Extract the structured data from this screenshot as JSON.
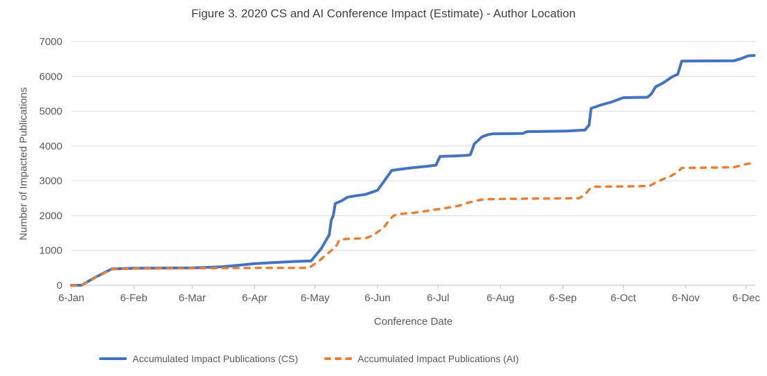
{
  "title": "Figure 3. 2020 CS and AI Conference Impact (Estimate) - Author Location",
  "chart_data": {
    "type": "line",
    "title": "Figure 3. 2020 CS and AI Conference Impact (Estimate) - Author Location",
    "xlabel": "Conference Date",
    "ylabel": "Number of Impacted Publications",
    "ylim": [
      0,
      7000
    ],
    "y_tick_step": 1000,
    "x_tick_labels": [
      "6-Jan",
      "6-Feb",
      "6-Mar",
      "6-Apr",
      "6-May",
      "6-Jun",
      "6-Jul",
      "6-Aug",
      "6-Sep",
      "6-Oct",
      "6-Nov",
      "6-Dec"
    ],
    "x_ticks_days": [
      0,
      31,
      60,
      91,
      121,
      152,
      182,
      213,
      244,
      274,
      305,
      335
    ],
    "x_unit": "days after 6-Jan-2020",
    "grid": "horizontal",
    "legend_position": "bottom",
    "colors": {
      "gridline": "#D9D9D9",
      "axis": "#BFBFBF",
      "tick_text": "#595959",
      "title_text": "#404040"
    },
    "series": [
      {
        "id": "cs",
        "name": "Accumulated Impact Publications (CS)",
        "color": "#4472C4",
        "style": "solid",
        "width": 4,
        "points": [
          [
            0,
            0
          ],
          [
            5,
            0
          ],
          [
            12,
            230
          ],
          [
            20,
            470
          ],
          [
            31,
            490
          ],
          [
            60,
            500
          ],
          [
            75,
            530
          ],
          [
            91,
            620
          ],
          [
            100,
            650
          ],
          [
            110,
            680
          ],
          [
            119,
            700
          ],
          [
            124,
            1050
          ],
          [
            128,
            1450
          ],
          [
            129,
            1870
          ],
          [
            130,
            2000
          ],
          [
            131,
            2350
          ],
          [
            134,
            2420
          ],
          [
            137,
            2530
          ],
          [
            141,
            2570
          ],
          [
            146,
            2610
          ],
          [
            152,
            2730
          ],
          [
            156,
            3050
          ],
          [
            159,
            3300
          ],
          [
            163,
            3330
          ],
          [
            170,
            3380
          ],
          [
            177,
            3420
          ],
          [
            181,
            3450
          ],
          [
            182,
            3580
          ],
          [
            183,
            3700
          ],
          [
            190,
            3715
          ],
          [
            196,
            3730
          ],
          [
            198,
            3745
          ],
          [
            199,
            3900
          ],
          [
            200,
            4060
          ],
          [
            204,
            4270
          ],
          [
            207,
            4330
          ],
          [
            209,
            4350
          ],
          [
            224,
            4360
          ],
          [
            226,
            4410
          ],
          [
            246,
            4430
          ],
          [
            255,
            4460
          ],
          [
            257,
            4600
          ],
          [
            258,
            5080
          ],
          [
            263,
            5180
          ],
          [
            268,
            5260
          ],
          [
            274,
            5390
          ],
          [
            286,
            5400
          ],
          [
            288,
            5500
          ],
          [
            290,
            5700
          ],
          [
            294,
            5820
          ],
          [
            298,
            5980
          ],
          [
            301,
            6060
          ],
          [
            302,
            6250
          ],
          [
            303,
            6440
          ],
          [
            329,
            6450
          ],
          [
            332,
            6500
          ],
          [
            336,
            6590
          ],
          [
            339,
            6600
          ]
        ]
      },
      {
        "id": "ai",
        "name": "Accumulated Impact Publications (AI)",
        "color": "#ED7D31",
        "style": "dashed",
        "dash": "7 9",
        "width": 3.5,
        "points": [
          [
            0,
            0
          ],
          [
            5,
            0
          ],
          [
            12,
            220
          ],
          [
            20,
            460
          ],
          [
            31,
            480
          ],
          [
            60,
            490
          ],
          [
            91,
            500
          ],
          [
            118,
            500
          ],
          [
            123,
            700
          ],
          [
            127,
            900
          ],
          [
            131,
            1090
          ],
          [
            132,
            1180
          ],
          [
            133,
            1300
          ],
          [
            136,
            1330
          ],
          [
            146,
            1350
          ],
          [
            150,
            1440
          ],
          [
            152,
            1530
          ],
          [
            155,
            1650
          ],
          [
            158,
            1890
          ],
          [
            160,
            2000
          ],
          [
            163,
            2050
          ],
          [
            170,
            2080
          ],
          [
            178,
            2150
          ],
          [
            186,
            2220
          ],
          [
            192,
            2280
          ],
          [
            197,
            2370
          ],
          [
            202,
            2440
          ],
          [
            205,
            2470
          ],
          [
            213,
            2480
          ],
          [
            230,
            2490
          ],
          [
            252,
            2500
          ],
          [
            255,
            2600
          ],
          [
            257,
            2750
          ],
          [
            259,
            2830
          ],
          [
            274,
            2840
          ],
          [
            287,
            2850
          ],
          [
            290,
            2950
          ],
          [
            293,
            3030
          ],
          [
            298,
            3150
          ],
          [
            301,
            3250
          ],
          [
            303,
            3370
          ],
          [
            320,
            3380
          ],
          [
            329,
            3390
          ],
          [
            334,
            3470
          ],
          [
            337,
            3500
          ],
          [
            339,
            3510
          ]
        ]
      }
    ]
  }
}
